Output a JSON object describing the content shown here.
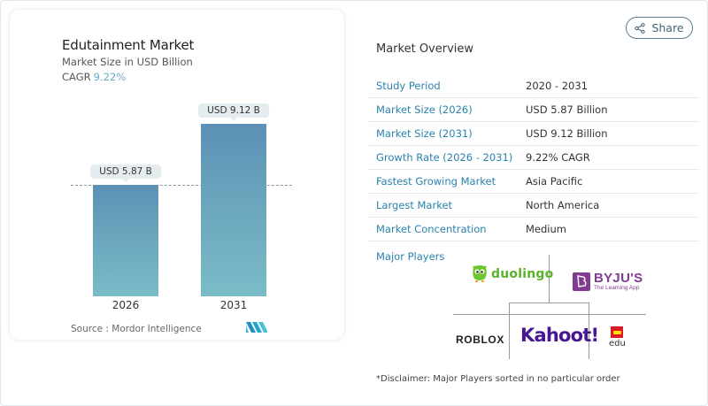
{
  "chart_card": {
    "title": "Edutainment Market",
    "subtitle": "Market Size in USD Billion",
    "cagr_label": "CAGR",
    "cagr_value": "9.22%",
    "source": "Source :  Mordor Intelligence"
  },
  "chart_data": {
    "type": "bar",
    "title": "Edutainment Market",
    "subtitle": "Market Size in USD Billion",
    "categories": [
      "2026",
      "2031"
    ],
    "values": [
      5.87,
      9.12
    ],
    "data_labels": [
      "USD 5.87 B",
      "USD 9.12 B"
    ],
    "xlabel": "",
    "ylabel": "Market Size in USD Billion",
    "ylim": [
      0,
      10
    ],
    "grid": false,
    "reference_line": {
      "style": "dashed",
      "value": 5.87
    },
    "annotations": [
      "CAGR 9.22%"
    ],
    "colors": {
      "bar_top": "#5b90b5",
      "bar_bottom": "#79bcc7"
    }
  },
  "header": {
    "share_label": "Share",
    "share_icon": "share-icon"
  },
  "overview": {
    "title": "Market Overview",
    "rows": [
      {
        "key": "Study Period",
        "value": "2020 - 2031"
      },
      {
        "key": "Market Size (2026)",
        "value": "USD 5.87 Billion"
      },
      {
        "key": "Market Size (2031)",
        "value": "USD 9.12 Billion"
      },
      {
        "key": "Growth Rate (2026 - 2031)",
        "value": "9.22% CAGR"
      },
      {
        "key": "Fastest Growing Market",
        "value": "Asia Pacific"
      },
      {
        "key": "Largest Market",
        "value": "North America"
      },
      {
        "key": "Market Concentration",
        "value": "Medium"
      }
    ]
  },
  "players": {
    "label": "Major Players",
    "logos": {
      "duolingo": "duolingo",
      "byjus_main": "BYJU'S",
      "byjus_sub": "The Learning App",
      "roblox": "ROBLOX",
      "kahoot": "Kahoot!",
      "lego_edu": "edu"
    },
    "disclaimer": "*Disclaimer: Major Players sorted in no particular order"
  },
  "colors": {
    "accent_link": "#2a82ad",
    "cagr_value": "#6ea8c8",
    "share_border": "#5a7d92"
  }
}
